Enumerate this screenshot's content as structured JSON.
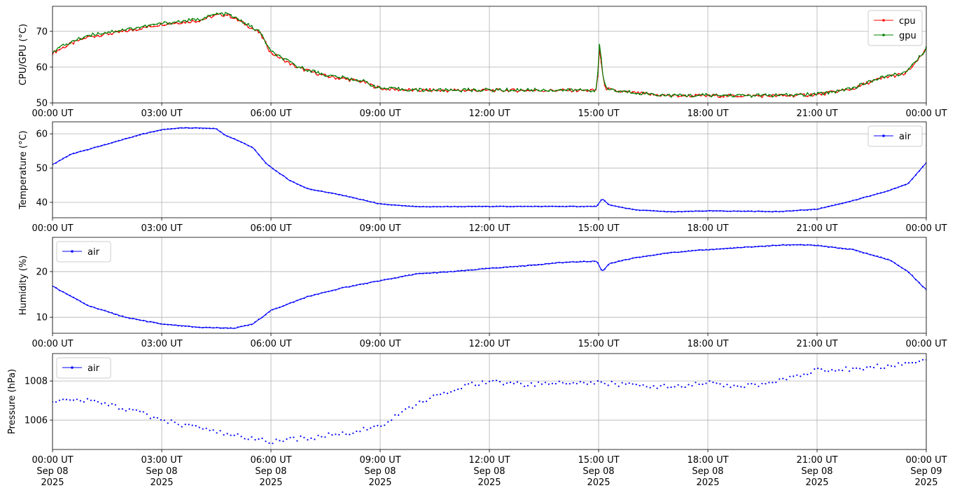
{
  "chart_data": [
    {
      "type": "line",
      "ylabel": "CPU/GPU (°C)",
      "ylim": [
        50,
        77
      ],
      "yticks": [
        50,
        60,
        70
      ],
      "x_tick_labels": [
        "00:00 UT",
        "03:00 UT",
        "06:00 UT",
        "09:00 UT",
        "12:00 UT",
        "15:00 UT",
        "18:00 UT",
        "21:00 UT",
        "00:00 UT"
      ],
      "x_hours": [
        0,
        0.5,
        1,
        2,
        3,
        4,
        4.5,
        4.8,
        5.3,
        5.7,
        6,
        6.7,
        7.5,
        8.5,
        9,
        10,
        12,
        14,
        14.95,
        15.03,
        15.1,
        15.2,
        15.5,
        16,
        16.5,
        17,
        18,
        20,
        21,
        22,
        22.5,
        23,
        23.4,
        23.7,
        24
      ],
      "grid": true,
      "legend_position": "upper right",
      "series": [
        {
          "name": "cpu",
          "color": "#ff0000",
          "values": [
            64,
            66.5,
            68.5,
            70,
            72,
            73,
            74.5,
            74.7,
            72,
            69.5,
            64,
            60,
            57.5,
            56,
            54,
            53.5,
            53.5,
            53.5,
            53.5,
            66,
            58,
            54,
            53.2,
            52.8,
            52.3,
            52,
            52,
            52,
            52.3,
            54,
            56,
            57.5,
            58,
            61,
            65
          ]
        },
        {
          "name": "gpu",
          "color": "#008000",
          "values": [
            64.5,
            67,
            69,
            70.5,
            72.2,
            73.3,
            74.8,
            74.9,
            72.2,
            69.8,
            64.3,
            60.3,
            57.8,
            56.2,
            54.1,
            53.6,
            53.6,
            53.6,
            53.6,
            67.5,
            58.5,
            54.2,
            53.3,
            52.9,
            52.4,
            52.1,
            52.1,
            52.1,
            52.4,
            54.2,
            56.2,
            57.7,
            58.3,
            61.3,
            65.2
          ]
        }
      ]
    },
    {
      "type": "line",
      "ylabel": "Temperature (°C)",
      "ylim": [
        35.5,
        63.5
      ],
      "yticks": [
        40,
        50,
        60
      ],
      "x_tick_labels": [
        "00:00 UT",
        "03:00 UT",
        "06:00 UT",
        "09:00 UT",
        "12:00 UT",
        "15:00 UT",
        "18:00 UT",
        "21:00 UT",
        "00:00 UT"
      ],
      "x_hours": [
        0,
        0.5,
        1,
        1.5,
        2,
        2.5,
        3,
        3.5,
        4,
        4.5,
        4.75,
        5,
        5.5,
        5.9,
        6.5,
        7,
        8,
        9,
        10,
        12,
        14,
        14.95,
        15.1,
        15.3,
        16,
        17,
        18,
        20,
        21,
        22,
        23,
        23.5,
        24
      ],
      "grid": true,
      "legend_position": "upper right",
      "series": [
        {
          "name": "air",
          "color": "#0000ff",
          "values": [
            51,
            54,
            55.5,
            57,
            58.5,
            60,
            61.2,
            61.7,
            61.7,
            61.5,
            59.5,
            58.5,
            56,
            51,
            46.5,
            44,
            42,
            39.5,
            38.7,
            38.8,
            38.8,
            38.8,
            41,
            39.2,
            37.8,
            37.2,
            37.5,
            37.3,
            38,
            40.5,
            43.5,
            45.5,
            51.5
          ]
        }
      ]
    },
    {
      "type": "line",
      "ylabel": "Humidity (%)",
      "ylim": [
        6.5,
        27.5
      ],
      "yticks": [
        10,
        20
      ],
      "x_tick_labels": [
        "00:00 UT",
        "03:00 UT",
        "06:00 UT",
        "09:00 UT",
        "12:00 UT",
        "15:00 UT",
        "18:00 UT",
        "21:00 UT",
        "00:00 UT"
      ],
      "x_hours": [
        0,
        1,
        2,
        3,
        4,
        5,
        5.5,
        6,
        7,
        8,
        9,
        10,
        11,
        12,
        13,
        14,
        14.95,
        15.1,
        15.3,
        16,
        17,
        18,
        19,
        20,
        20.5,
        21,
        22,
        23,
        23.5,
        24
      ],
      "grid": true,
      "legend_position": "upper left",
      "series": [
        {
          "name": "air",
          "color": "#0000ff",
          "values": [
            16.8,
            12.5,
            10,
            8.5,
            7.8,
            7.6,
            8.5,
            11.5,
            14.5,
            16.5,
            18,
            19.5,
            20,
            20.7,
            21.3,
            22,
            22.3,
            20,
            21.8,
            23,
            24.2,
            24.8,
            25.3,
            25.8,
            25.9,
            25.7,
            24.8,
            22.5,
            20,
            16
          ]
        }
      ]
    },
    {
      "type": "scatter",
      "ylabel": "Pressure (hPa)",
      "ylim": [
        1004.5,
        1009.4
      ],
      "yticks": [
        1006,
        1008
      ],
      "x_tick_labels": [
        "00:00 UT\nSep 08\n2025",
        "03:00 UT\nSep 08\n2025",
        "06:00 UT\nSep 08\n2025",
        "09:00 UT\nSep 08\n2025",
        "12:00 UT\nSep 08\n2025",
        "15:00 UT\nSep 08\n2025",
        "18:00 UT\nSep 08\n2025",
        "21:00 UT\nSep 08\n2025",
        "00:00 UT\nSep 09\n2025"
      ],
      "x_hours": [
        0,
        1,
        2,
        3,
        4,
        5,
        6,
        7,
        8,
        9,
        10,
        11,
        12,
        13,
        14,
        15,
        16,
        17,
        18,
        19,
        20,
        21,
        22,
        23,
        24
      ],
      "grid": true,
      "legend_position": "upper left",
      "series": [
        {
          "name": "air",
          "color": "#0000ff",
          "values": [
            1007.0,
            1007.0,
            1006.6,
            1006.0,
            1005.6,
            1005.2,
            1004.9,
            1005.1,
            1005.3,
            1005.7,
            1006.8,
            1007.6,
            1008.0,
            1007.8,
            1007.9,
            1007.9,
            1007.8,
            1007.7,
            1007.9,
            1007.7,
            1008.0,
            1008.6,
            1008.6,
            1008.8,
            1009.1
          ]
        }
      ]
    }
  ]
}
